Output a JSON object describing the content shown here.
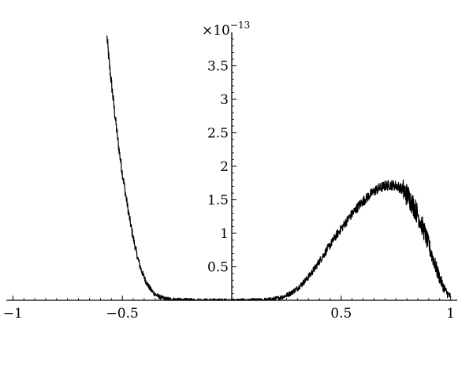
{
  "chart_data": {
    "type": "line",
    "title": "",
    "xlabel": "",
    "ylabel": "",
    "y_multiplier": {
      "base": "×10",
      "exponent": "−13"
    },
    "xlim": [
      -1.03,
      1.03
    ],
    "ylim": [
      0,
      4.0
    ],
    "x_ticks": [
      -1,
      -0.5,
      0.5,
      1
    ],
    "x_tick_labels": [
      "−1",
      "−0.5",
      "0.5",
      "1"
    ],
    "y_ticks": [
      0.5,
      1,
      1.5,
      2,
      2.5,
      3,
      3.5
    ],
    "y_tick_labels": [
      "0.5",
      "1",
      "1.5",
      "2",
      "2.5",
      "3",
      "3.5"
    ],
    "grid": false,
    "legend": "none",
    "color": "#000000",
    "series": [
      {
        "x": [
          -0.57,
          -0.56,
          -0.55,
          -0.54,
          -0.53,
          -0.52,
          -0.51,
          -0.5,
          -0.49,
          -0.48,
          -0.47,
          -0.46,
          -0.45,
          -0.44,
          -0.43,
          -0.42,
          -0.41,
          -0.4,
          -0.39,
          -0.38,
          -0.37,
          -0.36,
          -0.35,
          -0.34,
          -0.33,
          -0.32,
          -0.31,
          -0.3,
          -0.28,
          -0.26,
          -0.24,
          -0.22,
          -0.2,
          -0.18,
          -0.16,
          -0.14,
          -0.12,
          -0.1,
          -0.08,
          -0.06,
          -0.04,
          -0.02,
          0.0,
          0.02,
          0.04,
          0.06,
          0.08,
          0.1,
          0.12,
          0.14,
          0.16,
          0.18,
          0.2,
          0.22,
          0.24,
          0.26,
          0.28,
          0.3,
          0.32,
          0.34,
          0.36,
          0.38,
          0.4,
          0.42,
          0.44,
          0.46,
          0.48,
          0.5,
          0.52,
          0.54,
          0.56,
          0.58,
          0.6,
          0.62,
          0.64,
          0.66,
          0.68,
          0.7,
          0.72,
          0.74,
          0.76,
          0.78,
          0.8,
          0.82,
          0.84,
          0.86,
          0.88,
          0.9,
          0.92,
          0.94,
          0.96,
          0.98,
          1.0
        ],
        "y": [
          3.92,
          3.55,
          3.25,
          2.95,
          2.66,
          2.38,
          2.13,
          1.9,
          1.69,
          1.48,
          1.28,
          1.1,
          0.93,
          0.78,
          0.64,
          0.52,
          0.42,
          0.34,
          0.27,
          0.21,
          0.16,
          0.12,
          0.09,
          0.07,
          0.05,
          0.04,
          0.03,
          0.02,
          0.015,
          0.01,
          0.006,
          0.004,
          0.002,
          0.001,
          0.0,
          0.0,
          0.0,
          0.0,
          0.0,
          0.0,
          0.0,
          0.0,
          0.0,
          0.0,
          0.0,
          0.0,
          0.0,
          0.001,
          0.002,
          0.004,
          0.008,
          0.015,
          0.025,
          0.04,
          0.06,
          0.09,
          0.13,
          0.18,
          0.24,
          0.31,
          0.39,
          0.48,
          0.58,
          0.68,
          0.78,
          0.88,
          0.98,
          1.07,
          1.16,
          1.25,
          1.33,
          1.41,
          1.48,
          1.54,
          1.6,
          1.65,
          1.68,
          1.71,
          1.72,
          1.72,
          1.7,
          1.65,
          1.58,
          1.48,
          1.35,
          1.2,
          1.02,
          0.82,
          0.62,
          0.42,
          0.25,
          0.12,
          0.05
        ]
      }
    ]
  }
}
